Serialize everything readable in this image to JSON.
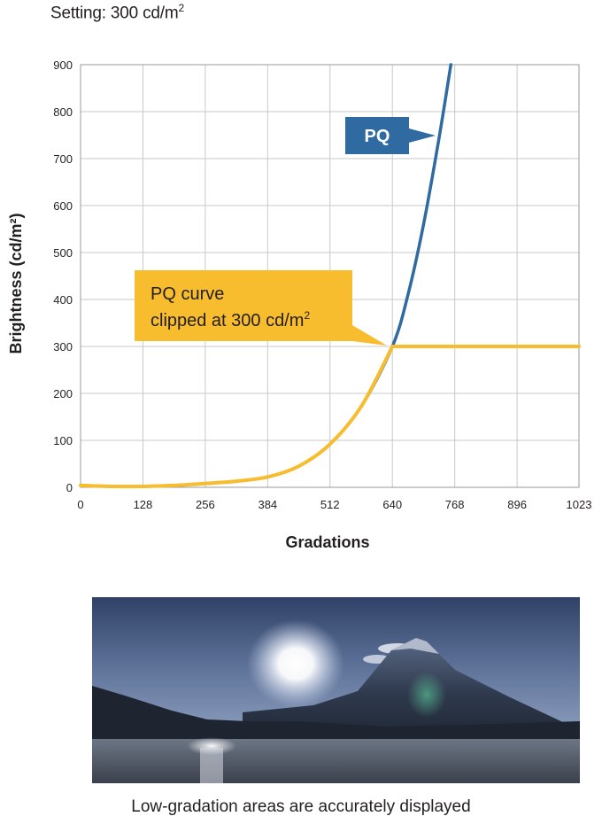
{
  "header": {
    "setting_label": "Setting: 300 cd/m",
    "setting_sup": "2"
  },
  "chart_data": {
    "type": "line",
    "xlabel": "Gradations",
    "ylabel": "Brightness (cd/m²)",
    "xlim": [
      0,
      1023
    ],
    "ylim": [
      0,
      900
    ],
    "xticks": [
      0,
      128,
      256,
      384,
      512,
      640,
      768,
      896,
      1023
    ],
    "yticks": [
      0,
      100,
      200,
      300,
      400,
      500,
      600,
      700,
      800,
      900
    ],
    "grid": true,
    "series": [
      {
        "name": "PQ",
        "color": "#2f6aa0",
        "x": [
          0,
          64,
          128,
          192,
          256,
          320,
          384,
          448,
          512,
          576,
          640,
          672,
          704,
          736,
          760
        ],
        "y": [
          4,
          2,
          2,
          4,
          8,
          13,
          22,
          45,
          92,
          172,
          300,
          410,
          560,
          745,
          900
        ]
      },
      {
        "name": "PQ curve clipped at 300 cd/m²",
        "color": "#f7bd2e",
        "x": [
          0,
          64,
          128,
          192,
          256,
          320,
          384,
          448,
          512,
          576,
          640,
          1023
        ],
        "y": [
          4,
          2,
          2,
          4,
          8,
          13,
          22,
          45,
          92,
          172,
          300,
          300
        ]
      }
    ],
    "annotations": [
      {
        "text": "PQ",
        "color": "#2f6aa0",
        "text_color": "#ffffff"
      },
      {
        "lines": [
          "PQ curve",
          "clipped at 300 cd/m"
        ],
        "sup": "2",
        "color": "#f7bd2e",
        "text_color": "#231f20"
      }
    ]
  },
  "photo": {
    "alt": "Mount Fuji with the sun over a lake"
  },
  "caption": "Low-gradation areas are accurately displayed"
}
